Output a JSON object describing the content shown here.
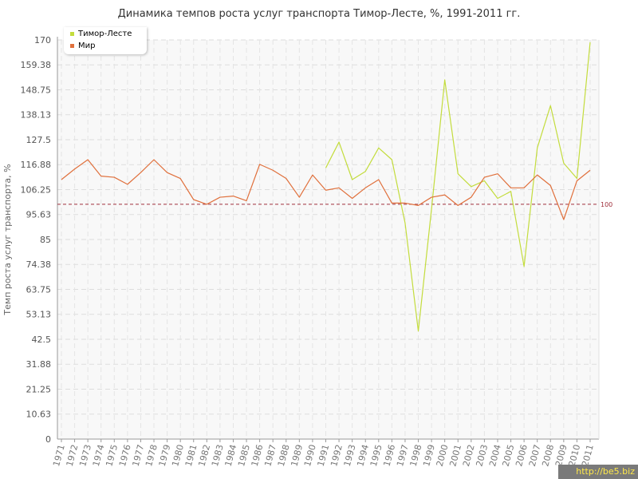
{
  "chart_data": {
    "type": "line",
    "title": "Динамика темпов роста услуг транспорта Тимор-Лесте, %, 1991-2011 гг.",
    "ylabel": "Темп роста услуг транспорта, %",
    "xlabel": "",
    "ylim": [
      0,
      170
    ],
    "yticks": [
      "0",
      "10.63",
      "21.25",
      "31.88",
      "42.5",
      "53.13",
      "63.75",
      "74.38",
      "85",
      "95.63",
      "106.25",
      "116.88",
      "127.5",
      "138.13",
      "148.75",
      "159.38",
      "170"
    ],
    "x": [
      "1971",
      "1972",
      "1973",
      "1974",
      "1975",
      "1976",
      "1977",
      "1978",
      "1979",
      "1980",
      "1981",
      "1982",
      "1983",
      "1984",
      "1985",
      "1986",
      "1987",
      "1988",
      "1989",
      "1990",
      "1991",
      "1992",
      "1993",
      "1994",
      "1995",
      "1996",
      "1997",
      "1998",
      "1999",
      "2000",
      "2001",
      "2002",
      "2003",
      "2004",
      "2005",
      "2006",
      "2007",
      "2008",
      "2009",
      "2010",
      "2011"
    ],
    "grid": true,
    "legend_position": "top-left",
    "series": [
      {
        "name": "Тимор-Лесте",
        "color": "#c3dc3c",
        "values": [
          null,
          null,
          null,
          null,
          null,
          null,
          null,
          null,
          null,
          null,
          null,
          null,
          null,
          null,
          null,
          null,
          null,
          null,
          null,
          null,
          115.5,
          126.5,
          110.5,
          114,
          124,
          119,
          92,
          46,
          98,
          153,
          113,
          107.5,
          110,
          102.5,
          105.5,
          73.5,
          124,
          142,
          117.5,
          111,
          169
        ]
      },
      {
        "name": "Мир",
        "color": "#e0703c",
        "values": [
          110.5,
          115,
          119,
          112,
          111.5,
          108.5,
          113.5,
          119,
          113.5,
          111,
          102,
          100,
          103,
          103.5,
          101.5,
          117,
          114.5,
          111,
          103,
          112.5,
          106,
          107,
          102.5,
          107,
          110.5,
          100.5,
          100.5,
          99.5,
          103,
          104,
          99.5,
          103,
          111.5,
          113,
          107,
          107,
          112.5,
          108,
          93.5,
          110,
          114.5
        ]
      }
    ],
    "reference_line": {
      "value": 100,
      "label": "100",
      "color": "#a0303c"
    }
  },
  "watermark": "http://be5.biz"
}
